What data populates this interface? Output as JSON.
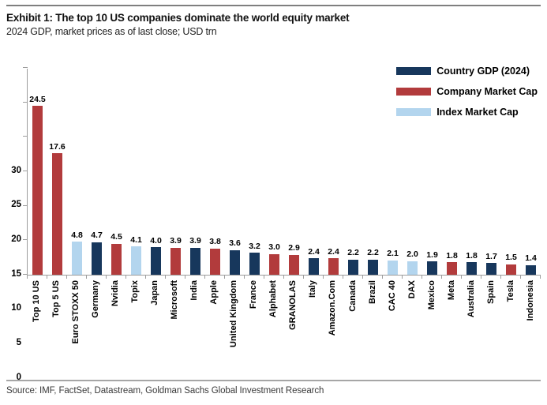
{
  "header": {
    "title": "Exhibit 1: The top 10 US companies dominate the world equity market",
    "subtitle": "2024 GDP, market prices as of last close; USD trn"
  },
  "footer": {
    "source": "Source: IMF, FactSet, Datastream, Goldman Sachs Global Investment Research"
  },
  "colors": {
    "gdp": "#17375C",
    "company": "#B23B3C",
    "index": "#B3D5EE",
    "axis": "#9d9d9d"
  },
  "legend": {
    "position": "top-right",
    "items": [
      {
        "label": "Country GDP (2024)",
        "series": "gdp"
      },
      {
        "label": "Company Market Cap",
        "series": "company"
      },
      {
        "label": "Index Market Cap",
        "series": "index"
      }
    ]
  },
  "chart_data": {
    "type": "bar",
    "title": "Exhibit 1: The top 10 US companies dominate the world equity market",
    "subtitle": "2024 GDP, market prices as of last close; USD trn",
    "xlabel": "",
    "ylabel": "",
    "ylim": [
      0,
      30
    ],
    "yticks": [
      0,
      5,
      10,
      15,
      20,
      25,
      30
    ],
    "grid": false,
    "value_labels": true,
    "bars": [
      {
        "category": "Top 10 US",
        "value": 24.5,
        "series": "company"
      },
      {
        "category": "Top 5 US",
        "value": 17.6,
        "series": "company"
      },
      {
        "category": "Euro STOXX 50",
        "value": 4.8,
        "series": "index"
      },
      {
        "category": "Germany",
        "value": 4.7,
        "series": "gdp"
      },
      {
        "category": "Nvidia",
        "value": 4.5,
        "series": "company"
      },
      {
        "category": "Topix",
        "value": 4.1,
        "series": "index"
      },
      {
        "category": "Japan",
        "value": 4.0,
        "series": "gdp"
      },
      {
        "category": "Microsoft",
        "value": 3.9,
        "series": "company"
      },
      {
        "category": "India",
        "value": 3.9,
        "series": "gdp"
      },
      {
        "category": "Apple",
        "value": 3.8,
        "series": "company"
      },
      {
        "category": "United Kingdom",
        "value": 3.6,
        "series": "gdp"
      },
      {
        "category": "France",
        "value": 3.2,
        "series": "gdp"
      },
      {
        "category": "Alphabet",
        "value": 3.0,
        "series": "company"
      },
      {
        "category": "GRANOLAS",
        "value": 2.9,
        "series": "company"
      },
      {
        "category": "Italy",
        "value": 2.4,
        "series": "gdp"
      },
      {
        "category": "Amazon.Com",
        "value": 2.4,
        "series": "company"
      },
      {
        "category": "Canada",
        "value": 2.2,
        "series": "gdp"
      },
      {
        "category": "Brazil",
        "value": 2.2,
        "series": "gdp"
      },
      {
        "category": "CAC 40",
        "value": 2.1,
        "series": "index"
      },
      {
        "category": "DAX",
        "value": 2.0,
        "series": "index"
      },
      {
        "category": "Mexico",
        "value": 1.9,
        "series": "gdp"
      },
      {
        "category": "Meta",
        "value": 1.8,
        "series": "company"
      },
      {
        "category": "Australia",
        "value": 1.8,
        "series": "gdp"
      },
      {
        "category": "Spain",
        "value": 1.7,
        "series": "gdp"
      },
      {
        "category": "Tesla",
        "value": 1.5,
        "series": "company"
      },
      {
        "category": "Indonesia",
        "value": 1.4,
        "series": "gdp"
      }
    ]
  }
}
